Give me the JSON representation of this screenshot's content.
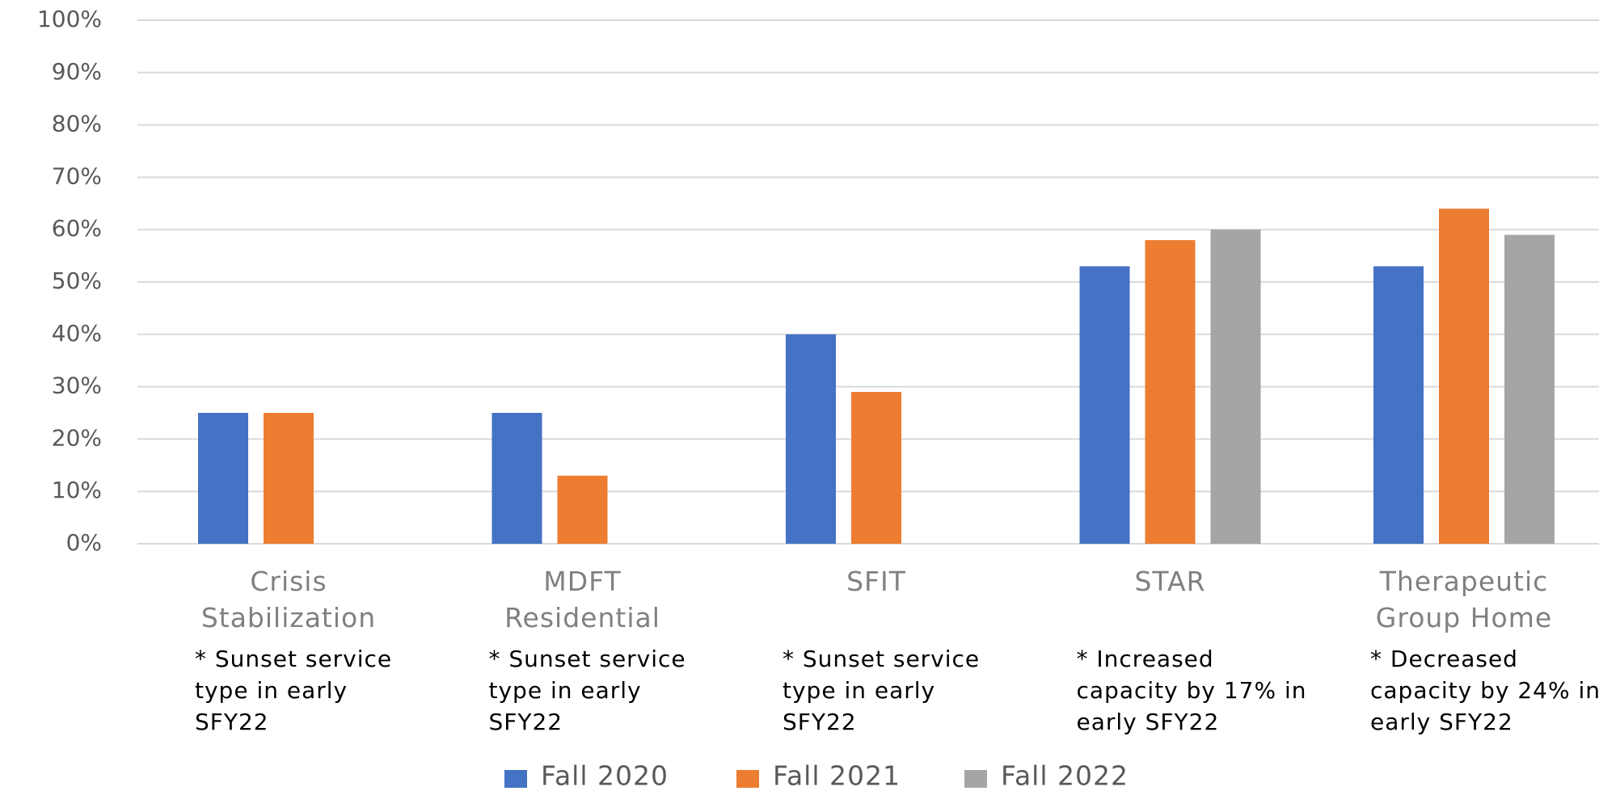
{
  "chart_data": {
    "type": "bar",
    "categories": [
      "Crisis Stabilization",
      "MDFT Residential",
      "SFIT",
      "STAR",
      "Therapeutic Group Home"
    ],
    "annotations": [
      "* Sunset service type in early SFY22",
      "* Sunset service type in early SFY22",
      "* Sunset service type in early SFY22",
      "* Increased capacity by 17% in early SFY22",
      "* Decreased capacity by 24% in early SFY22"
    ],
    "series": [
      {
        "name": "Fall 2020",
        "color": "#4472c4",
        "values": [
          25,
          25,
          40,
          53,
          53
        ]
      },
      {
        "name": "Fall 2021",
        "color": "#ed7d31",
        "values": [
          25,
          13,
          29,
          58,
          64
        ]
      },
      {
        "name": "Fall 2022",
        "color": "#a5a5a5",
        "values": [
          null,
          null,
          null,
          60,
          59
        ]
      }
    ],
    "ylim": [
      0,
      100
    ],
    "yticks": [
      {
        "value": 0,
        "label": "0%"
      },
      {
        "value": 10,
        "label": "10%"
      },
      {
        "value": 20,
        "label": "20%"
      },
      {
        "value": 30,
        "label": "30%"
      },
      {
        "value": 40,
        "label": "40%"
      },
      {
        "value": 50,
        "label": "50%"
      },
      {
        "value": 60,
        "label": "60%"
      },
      {
        "value": 70,
        "label": "70%"
      },
      {
        "value": 80,
        "label": "80%"
      },
      {
        "value": 90,
        "label": "90%"
      },
      {
        "value": 100,
        "label": "100%"
      }
    ],
    "grid": true,
    "legend": "bottom"
  }
}
